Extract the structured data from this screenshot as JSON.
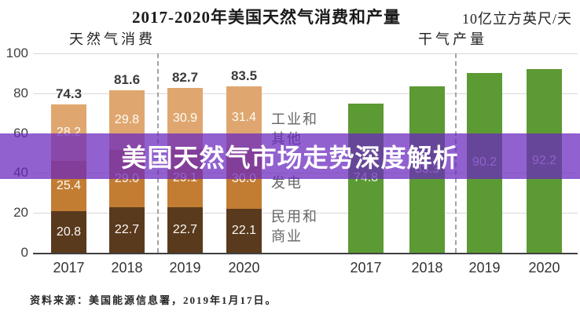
{
  "header": {
    "title": "2017-2020年美国天然气消费和产量",
    "unit": "10亿立方英尺/天",
    "left_subtitle": "天然气消费",
    "right_subtitle": "干气产量"
  },
  "overlay": {
    "text": "美国天然气市场走势深度解析",
    "color": "#6926be"
  },
  "source": "资料来源：美国能源信息署，2019年1月17日。",
  "colors": {
    "residential_commercial": "#5a3a1d",
    "power_generation": "#c27d33",
    "industrial_other": "#dfa76f",
    "dry_gas_production": "#5c9a33",
    "gridline": "#d9d9d9",
    "axis": "#404040"
  },
  "chart_data": {
    "type": "bar",
    "title": "2017-2020年美国天然气消费和产量",
    "ylabel": "10亿立方英尺/天",
    "ylim": [
      0,
      100
    ],
    "yticks": [
      0,
      20,
      40,
      60,
      80,
      100
    ],
    "grid": true,
    "categories": [
      "2017",
      "2018",
      "2019",
      "2020"
    ],
    "forecast_divider_between": [
      "2018",
      "2019"
    ],
    "left_panel": {
      "subtitle": "天然气消费",
      "stacked": true,
      "series": [
        {
          "name": "民用和商业",
          "color": "#5a3a1d",
          "values": [
            20.8,
            22.7,
            22.7,
            22.1
          ]
        },
        {
          "name": "发电",
          "color": "#c27d33",
          "values": [
            25.4,
            29.0,
            29.1,
            30.0
          ]
        },
        {
          "name": "工业和其他",
          "color": "#dfa76f",
          "values": [
            28.2,
            29.8,
            30.9,
            31.4
          ]
        }
      ],
      "totals": [
        "74.3",
        "81.6",
        "82.7",
        "83.5"
      ],
      "segment_value_labels": [
        [
          "20.8",
          "22.7",
          "22.7",
          "22.1"
        ],
        [
          "25.4",
          "29.0",
          "29.1",
          "30.0"
        ],
        [
          "28.2",
          "29.8",
          "30.9",
          "31.4"
        ]
      ]
    },
    "right_panel": {
      "subtitle": "干气产量",
      "series": [
        {
          "name": "干气产量",
          "color": "#5c9a33",
          "values": [
            74.8,
            83.3,
            90.2,
            92.2
          ]
        }
      ],
      "value_labels": [
        "74.8",
        "83.3",
        "90.2",
        "92.2"
      ]
    },
    "legend": {
      "position": "center-between-panels",
      "items": [
        {
          "lines": "工业和\n其他"
        },
        {
          "lines": "发电"
        },
        {
          "lines": "民用和\n商业"
        }
      ]
    }
  }
}
